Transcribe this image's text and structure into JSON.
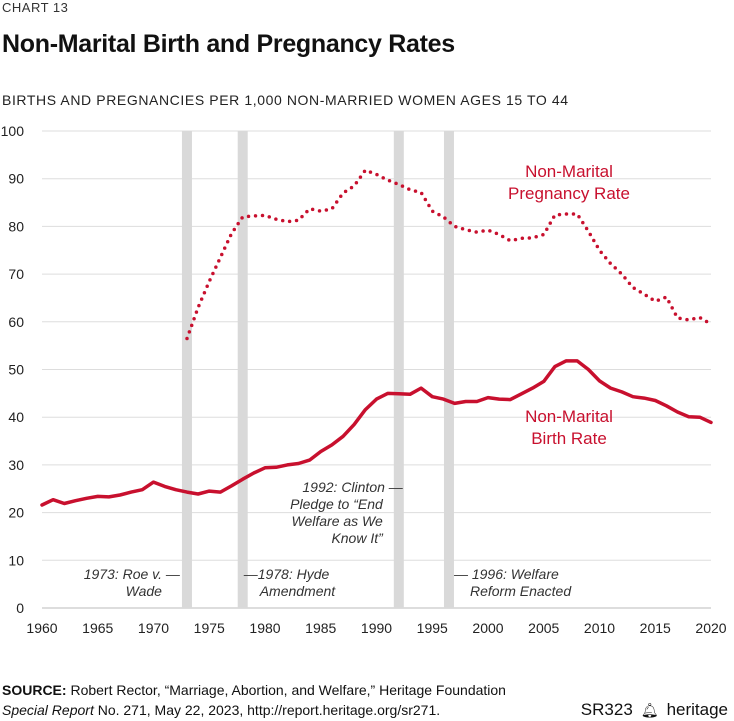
{
  "header": {
    "chart_label": "CHART 13",
    "title": "Non-Marital Birth and Pregnancy Rates",
    "subtitle": "BIRTHS AND PREGNANCIES PER 1,000 NON-MARRIED WOMEN AGES 15 TO 44"
  },
  "footer": {
    "source_label": "SOURCE:",
    "source_text": "Robert Rector, “Marriage, Abortion, and Welfare,” Heritage Foundation",
    "report_italic": "Special Report",
    "report_rest": "No. 271, May 22, 2023, http://report.heritage.org/sr271.",
    "report_id": "SR323",
    "brand_name": "heritage",
    "brand_icon": "bell-icon"
  },
  "chart_data": {
    "type": "line",
    "xlim": [
      1960,
      2020
    ],
    "ylim": [
      0,
      100
    ],
    "x_ticks": [
      1960,
      1965,
      1970,
      1975,
      1980,
      1985,
      1990,
      1995,
      2000,
      2005,
      2010,
      2015,
      2020
    ],
    "y_ticks": [
      0,
      10,
      20,
      30,
      40,
      50,
      60,
      70,
      80,
      90,
      100
    ],
    "grid": true,
    "legend": "inline labels",
    "colors": {
      "series": "#c8102e",
      "band": "#d9d9d9",
      "grid": "#dddddd"
    },
    "series": [
      {
        "name": "Non-Marital Birth Rate",
        "label_lines": [
          "Non-Marital",
          "Birth Rate"
        ],
        "style": "solid",
        "x": [
          1960,
          1961,
          1962,
          1963,
          1964,
          1965,
          1966,
          1967,
          1968,
          1969,
          1970,
          1971,
          1972,
          1973,
          1974,
          1975,
          1976,
          1977,
          1978,
          1979,
          1980,
          1981,
          1982,
          1983,
          1984,
          1985,
          1986,
          1987,
          1988,
          1989,
          1990,
          1991,
          1992,
          1993,
          1994,
          1995,
          1996,
          1997,
          1998,
          1999,
          2000,
          2001,
          2002,
          2003,
          2004,
          2005,
          2006,
          2007,
          2008,
          2009,
          2010,
          2011,
          2012,
          2013,
          2014,
          2015,
          2016,
          2017,
          2018,
          2019,
          2020
        ],
        "values": [
          21.6,
          22.7,
          21.9,
          22.5,
          23.0,
          23.4,
          23.3,
          23.7,
          24.3,
          24.8,
          26.4,
          25.5,
          24.8,
          24.3,
          23.9,
          24.5,
          24.3,
          25.6,
          27.0,
          28.3,
          29.4,
          29.5,
          30.0,
          30.3,
          31.0,
          32.8,
          34.2,
          36.0,
          38.5,
          41.6,
          43.8,
          45.0,
          44.9,
          44.8,
          46.1,
          44.3,
          43.8,
          42.9,
          43.3,
          43.3,
          44.1,
          43.8,
          43.7,
          44.9,
          46.1,
          47.5,
          50.6,
          51.8,
          51.8,
          50.0,
          47.6,
          46.1,
          45.3,
          44.3,
          44.0,
          43.5,
          42.4,
          41.1,
          40.1,
          40.0,
          38.9
        ]
      },
      {
        "name": "Non-Marital Pregnancy Rate",
        "label_lines": [
          "Non-Marital",
          "Pregnancy Rate"
        ],
        "style": "dotted",
        "x": [
          1973,
          1974,
          1975,
          1976,
          1977,
          1978,
          1979,
          1980,
          1981,
          1982,
          1983,
          1984,
          1985,
          1986,
          1987,
          1988,
          1989,
          1990,
          1991,
          1992,
          1993,
          1994,
          1995,
          1996,
          1997,
          1998,
          1999,
          2000,
          2001,
          2002,
          2003,
          2004,
          2005,
          2006,
          2007,
          2008,
          2009,
          2010,
          2011,
          2012,
          2013,
          2014,
          2015,
          2016,
          2017,
          2018,
          2019,
          2020
        ],
        "values": [
          56.5,
          63.0,
          68.5,
          73.5,
          78.5,
          82.0,
          82.2,
          82.3,
          81.5,
          81.0,
          81.3,
          83.7,
          83.2,
          83.7,
          87.0,
          88.5,
          91.8,
          90.9,
          89.7,
          88.8,
          87.7,
          87.1,
          83.2,
          82.0,
          80.0,
          79.3,
          78.8,
          79.2,
          78.3,
          77.0,
          77.5,
          77.6,
          78.3,
          82.4,
          82.6,
          82.6,
          79.0,
          75.0,
          72.2,
          70.0,
          67.2,
          65.8,
          64.3,
          65.2,
          60.8,
          60.4,
          60.9,
          59.5
        ]
      }
    ],
    "bands": [
      {
        "year": 1973,
        "label_lines": [
          "1973: Roe v. —",
          "Wade"
        ]
      },
      {
        "year": 1978,
        "label_lines": [
          "—1978: Hyde",
          "Amendment"
        ]
      },
      {
        "year": 1992,
        "label_lines": [
          "1992: Clinton —",
          "Pledge to “End",
          "Welfare as We",
          "Know It”"
        ]
      },
      {
        "year": 1996.5,
        "label_lines": [
          "— 1996: Welfare",
          "Reform Enacted"
        ]
      }
    ]
  }
}
